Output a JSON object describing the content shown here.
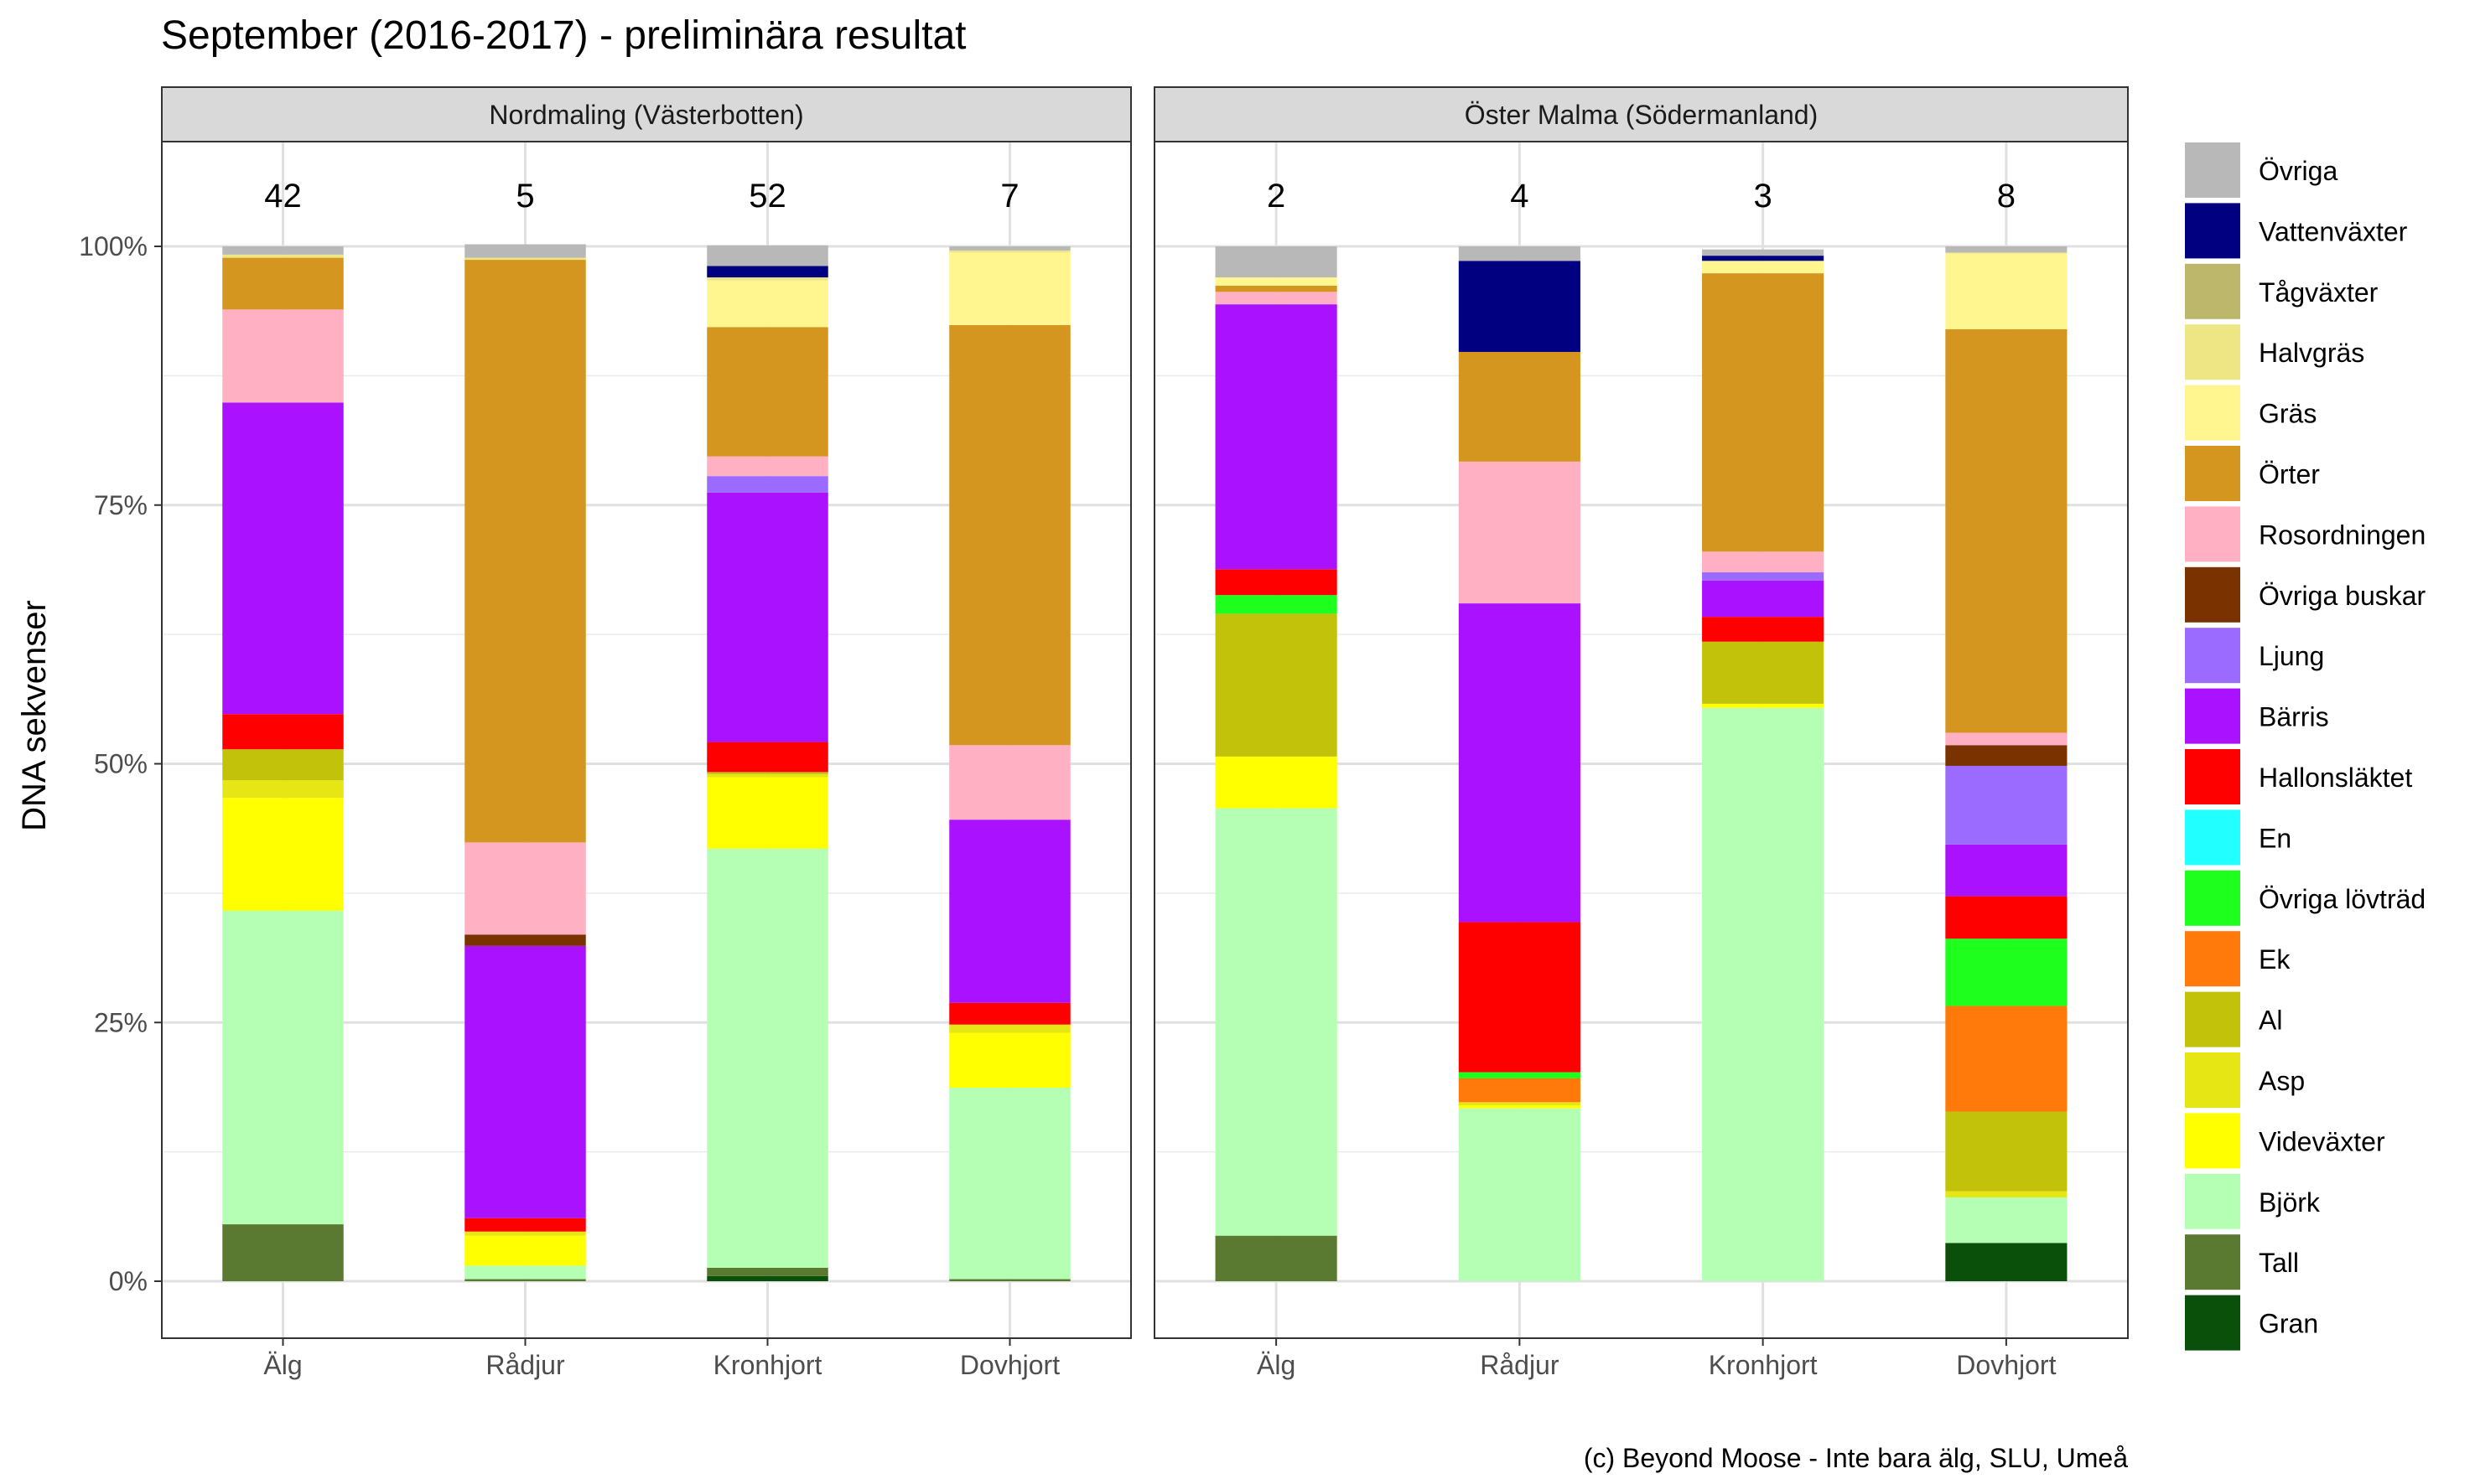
{
  "title": "September (2016-2017) - preliminära resultat",
  "ylabel": "DNA sekvenser",
  "caption": "(c) Beyond Moose - Inte bara älg, SLU, Umeå",
  "yticks": [
    "0%",
    "25%",
    "50%",
    "75%",
    "100%"
  ],
  "legend": [
    {
      "name": "Övriga",
      "color": "#B8B8B8"
    },
    {
      "name": "Vattenväxter",
      "color": "#000080"
    },
    {
      "name": "Tågväxter",
      "color": "#BDB76B"
    },
    {
      "name": "Halvgräs",
      "color": "#EEE685"
    },
    {
      "name": "Gräs",
      "color": "#FFF68F"
    },
    {
      "name": "Örter",
      "color": "#D4961E"
    },
    {
      "name": "Rosordningen",
      "color": "#FFB0C3"
    },
    {
      "name": "Övriga buskar",
      "color": "#7A3300"
    },
    {
      "name": "Ljung",
      "color": "#9B6BFF"
    },
    {
      "name": "Bärris",
      "color": "#AA11FF"
    },
    {
      "name": "Hallonsläktet",
      "color": "#FF0000"
    },
    {
      "name": "En",
      "color": "#22FFFF"
    },
    {
      "name": "Övriga lövträd",
      "color": "#1EFF1E"
    },
    {
      "name": "Ek",
      "color": "#FF7A0A"
    },
    {
      "name": "Al",
      "color": "#C2C20A"
    },
    {
      "name": "Asp",
      "color": "#E6E614"
    },
    {
      "name": "Videväxter",
      "color": "#FFFF00"
    },
    {
      "name": "Björk",
      "color": "#B5FFB5"
    },
    {
      "name": "Tall",
      "color": "#5A7A32"
    },
    {
      "name": "Gran",
      "color": "#0A500A"
    }
  ],
  "chart_data": {
    "type": "bar",
    "stacked": true,
    "title": "September (2016-2017) - preliminära resultat",
    "ylabel": "DNA sekvenser",
    "xlabel": "",
    "ylim": [
      0,
      100
    ],
    "stack_order_bottom_to_top": [
      "Gran",
      "Tall",
      "Björk",
      "Videväxter",
      "Asp",
      "Al",
      "Ek",
      "Övriga lövträd",
      "En",
      "Hallonsläktet",
      "Bärris",
      "Ljung",
      "Övriga buskar",
      "Rosordningen",
      "Örter",
      "Gräs",
      "Halvgräs",
      "Tågväxter",
      "Vattenväxter",
      "Övriga"
    ],
    "panels": [
      {
        "name": "Nordmaling (Västerbotten)",
        "categories": [
          "Älg",
          "Rådjur",
          "Kronhjort",
          "Dovhjort"
        ],
        "counts": [
          "42",
          "5",
          "52",
          "7"
        ],
        "bars": [
          {
            "Tall": 5.5,
            "Björk": 30.3,
            "Videväxter": 10.9,
            "Asp": 1.7,
            "Al": 3.0,
            "Hallonsläktet": 3.4,
            "Bärris": 30.1,
            "Rosordningen": 9.0,
            "Örter": 5.0,
            "Halvgräs": 0.3,
            "Övriga": 0.8
          },
          {
            "Tall": 0.2,
            "Björk": 1.3,
            "Videväxter": 2.9,
            "Asp": 0.4,
            "Hallonsläktet": 1.3,
            "Bärris": 26.3,
            "Övriga buskar": 1.1,
            "Rosordningen": 8.9,
            "Örter": 56.3,
            "Halvgräs": 0.2,
            "Övriga": 1.3
          },
          {
            "Gran": 0.5,
            "Tall": 0.8,
            "Björk": 40.5,
            "Videväxter": 6.9,
            "Asp": 0.3,
            "Al": 0.2,
            "Hallonsläktet": 2.9,
            "Bärris": 24.1,
            "Ljung": 1.6,
            "Rosordningen": 1.9,
            "Örter": 12.5,
            "Gräs": 4.5,
            "Halvgräs": 0.3,
            "Vattenväxter": 1.1,
            "Övriga": 2.0
          },
          {
            "Tall": 0.2,
            "Björk": 18.5,
            "Videväxter": 5.3,
            "Asp": 0.8,
            "Hallonsläktet": 2.1,
            "Bärris": 17.7,
            "Rosordningen": 7.2,
            "Örter": 40.6,
            "Gräs": 7.0,
            "Halvgräs": 0.2,
            "Övriga": 0.4
          }
        ]
      },
      {
        "name": "Öster Malma (Södermanland)",
        "categories": [
          "Älg",
          "Rådjur",
          "Kronhjort",
          "Dovhjort"
        ],
        "counts": [
          "2",
          "4",
          "3",
          "8"
        ],
        "bars": [
          {
            "Tall": 4.4,
            "Björk": 41.3,
            "Videväxter": 5.0,
            "Al": 13.8,
            "Övriga lövträd": 1.8,
            "Hallonsläktet": 2.5,
            "Bärris": 25.6,
            "Rosordningen": 1.2,
            "Örter": 0.6,
            "Gräs": 0.8,
            "Övriga": 3.0
          },
          {
            "Björk": 16.7,
            "Videväxter": 0.3,
            "Asp": 0.3,
            "Ek": 2.3,
            "Övriga lövträd": 0.6,
            "Hallonsläktet": 14.5,
            "Bärris": 30.8,
            "Rosordningen": 13.7,
            "Örter": 10.6,
            "Vattenväxter": 8.8,
            "Övriga": 1.4
          },
          {
            "Björk": 55.4,
            "Videväxter": 0.4,
            "Al": 6.0,
            "Hallonsläktet": 2.4,
            "Bärris": 3.5,
            "Ljung": 0.8,
            "Rosordningen": 2.0,
            "Örter": 26.9,
            "Gräs": 1.2,
            "Vattenväxter": 0.5,
            "Övriga": 0.6
          },
          {
            "Gran": 3.7,
            "Björk": 4.4,
            "Asp": 0.6,
            "Al": 7.7,
            "Ek": 10.2,
            "Övriga lövträd": 6.5,
            "Hallonsläktet": 4.1,
            "Bärris": 5.0,
            "Ljung": 7.6,
            "Övriga buskar": 2.0,
            "Rosordningen": 1.2,
            "Örter": 39.0,
            "Gräs": 7.3,
            "Halvgräs": 0.1,
            "Övriga": 0.6
          }
        ]
      }
    ]
  }
}
